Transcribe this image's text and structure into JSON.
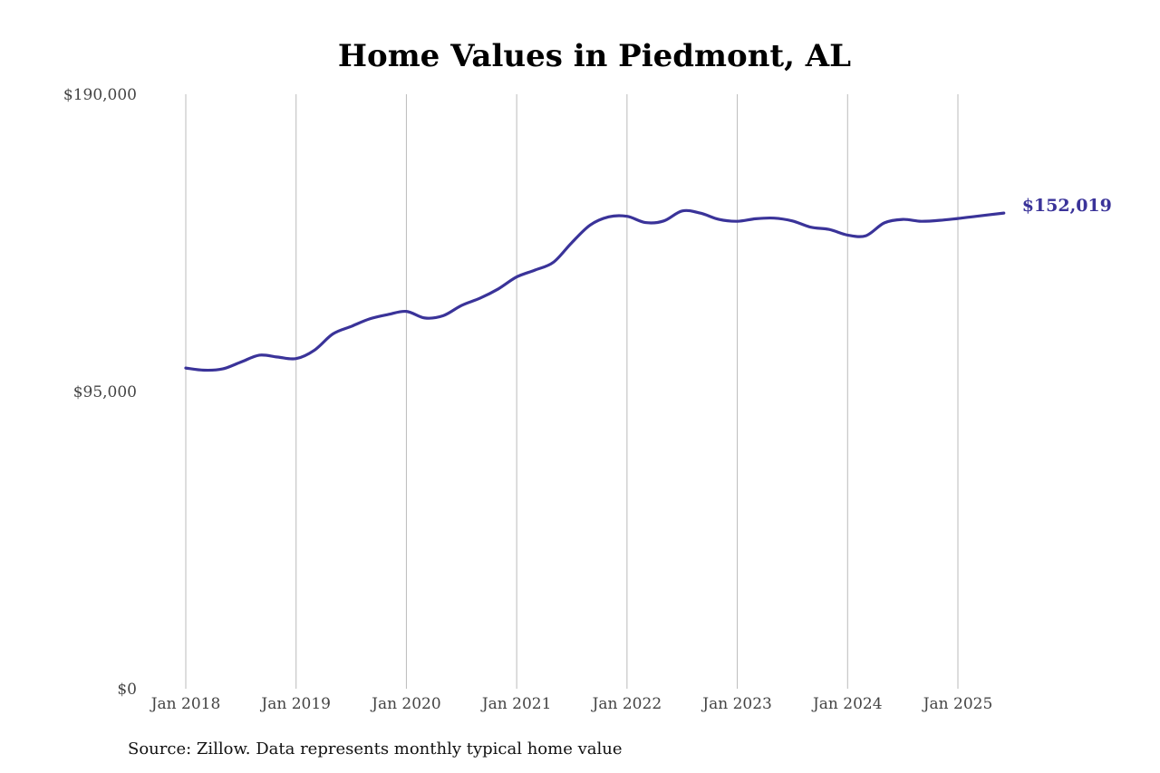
{
  "chart_data": {
    "type": "line",
    "title": "Home Values in Piedmont, AL",
    "xlabel": "",
    "ylabel": "",
    "ylim": [
      0,
      190000
    ],
    "yticks": [
      0,
      95000,
      190000
    ],
    "ytick_labels": [
      "$0",
      "$95,000",
      "$190,000"
    ],
    "xtick_labels": [
      "Jan 2018",
      "Jan 2019",
      "Jan 2020",
      "Jan 2021",
      "Jan 2022",
      "Jan 2023",
      "Jan 2024",
      "Jan 2025"
    ],
    "xtick_dates": [
      "2018-01",
      "2019-01",
      "2020-01",
      "2021-01",
      "2022-01",
      "2023-01",
      "2024-01",
      "2025-01"
    ],
    "grid": "vertical at each January",
    "line_color": "#3a3399",
    "end_label": "$152,019",
    "series": [
      {
        "x": [
          "2018-01",
          "2018-03",
          "2018-05",
          "2018-07",
          "2018-09",
          "2018-11",
          "2019-01",
          "2019-03",
          "2019-05",
          "2019-07",
          "2019-09",
          "2019-11",
          "2020-01",
          "2020-03",
          "2020-05",
          "2020-07",
          "2020-09",
          "2020-11",
          "2021-01",
          "2021-03",
          "2021-05",
          "2021-07",
          "2021-09",
          "2021-11",
          "2022-01",
          "2022-03",
          "2022-05",
          "2022-07",
          "2022-09",
          "2022-11",
          "2023-01",
          "2023-03",
          "2023-05",
          "2023-07",
          "2023-09",
          "2023-11",
          "2024-01",
          "2024-03",
          "2024-05",
          "2024-07",
          "2024-09",
          "2024-11",
          "2025-01",
          "2025-03",
          "2025-06"
        ],
        "values": [
          102500,
          101800,
          102200,
          104400,
          106600,
          106000,
          105500,
          108200,
          113400,
          115800,
          118200,
          119600,
          120600,
          118500,
          119200,
          122500,
          124800,
          127800,
          131600,
          133800,
          136300,
          142600,
          148200,
          150800,
          151000,
          149000,
          149500,
          152700,
          152000,
          150000,
          149400,
          150200,
          150400,
          149500,
          147500,
          146800,
          145000,
          144800,
          148900,
          150000,
          149400,
          149700,
          150300,
          151000,
          152019
        ]
      }
    ]
  },
  "source": "Source: Zillow. Data represents monthly typical home value"
}
